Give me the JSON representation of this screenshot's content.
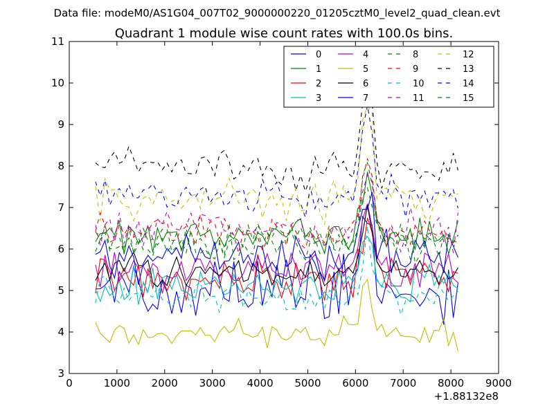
{
  "figure": {
    "suptitle": "Data file: modeM0/AS1G04_007T02_9000000220_01205cztM0_level2_quad_clean.evt"
  },
  "chart_data": {
    "type": "line",
    "title": "Quadrant 1 module wise count rates with 100.0s bins.",
    "xlabel": "",
    "ylabel": "",
    "x_offset_label": "+1.88132e8",
    "xlim": [
      0,
      9000
    ],
    "ylim": [
      3,
      11
    ],
    "xticks": [
      0,
      1000,
      2000,
      3000,
      4000,
      5000,
      6000,
      7000,
      8000,
      9000
    ],
    "yticks": [
      3,
      4,
      5,
      6,
      7,
      8,
      9,
      10,
      11
    ],
    "grid": false,
    "legend": "top-right",
    "legend_columns": 4,
    "x": {
      "start": 550,
      "stop": 8150,
      "step": 100
    },
    "series": [
      {
        "name": "0",
        "color": "#0000ff",
        "dash": "solid",
        "base": 5.0,
        "noise": 0.4,
        "peak": 1.6,
        "seed": 11
      },
      {
        "name": "1",
        "color": "#008000",
        "dash": "solid",
        "base": 6.35,
        "noise": 0.22,
        "peak": 1.7,
        "seed": 12
      },
      {
        "name": "2",
        "color": "#ff0000",
        "dash": "solid",
        "base": 5.3,
        "noise": 0.22,
        "peak": 1.4,
        "seed": 13
      },
      {
        "name": "3",
        "color": "#00bfbf",
        "dash": "solid",
        "base": 5.15,
        "noise": 0.22,
        "peak": 1.3,
        "seed": 14
      },
      {
        "name": "4",
        "color": "#bf00bf",
        "dash": "solid",
        "base": 5.5,
        "noise": 0.22,
        "peak": 1.5,
        "seed": 15
      },
      {
        "name": "5",
        "color": "#bfbf00",
        "dash": "solid",
        "base": 3.95,
        "noise": 0.17,
        "peak": 1.4,
        "seed": 16
      },
      {
        "name": "6",
        "color": "#000000",
        "dash": "solid",
        "base": 5.45,
        "noise": 0.17,
        "peak": 1.5,
        "seed": 17
      },
      {
        "name": "7",
        "color": "#0000ff",
        "dash": "solid",
        "base": 5.9,
        "noise": 0.28,
        "peak": 1.7,
        "seed": 18
      },
      {
        "name": "8",
        "color": "#008000",
        "dash": "dashed",
        "base": 6.2,
        "noise": 0.22,
        "peak": 1.7,
        "seed": 19
      },
      {
        "name": "9",
        "color": "#ff0000",
        "dash": "dashed",
        "base": 6.4,
        "noise": 0.22,
        "peak": 1.8,
        "seed": 20
      },
      {
        "name": "10",
        "color": "#00bfbf",
        "dash": "dashed",
        "base": 4.85,
        "noise": 0.2,
        "peak": 1.5,
        "seed": 21
      },
      {
        "name": "11",
        "color": "#bf00bf",
        "dash": "dashed",
        "base": 6.5,
        "noise": 0.22,
        "peak": 1.7,
        "seed": 22
      },
      {
        "name": "12",
        "color": "#bfbf00",
        "dash": "dashed",
        "base": 7.15,
        "noise": 0.25,
        "peak": 2.5,
        "seed": 23
      },
      {
        "name": "13",
        "color": "#000000",
        "dash": "dashed",
        "base": 7.95,
        "noise": 0.22,
        "peak": 1.9,
        "seed": 24
      },
      {
        "name": "14",
        "color": "#0000ff",
        "dash": "dashed",
        "base": 7.25,
        "noise": 0.22,
        "peak": 1.9,
        "seed": 25
      },
      {
        "name": "15",
        "color": "#008000",
        "dash": "dashed",
        "base": 6.2,
        "noise": 0.22,
        "peak": 1.6,
        "seed": 26
      }
    ],
    "flare": {
      "center": 6250,
      "width": 170
    }
  }
}
